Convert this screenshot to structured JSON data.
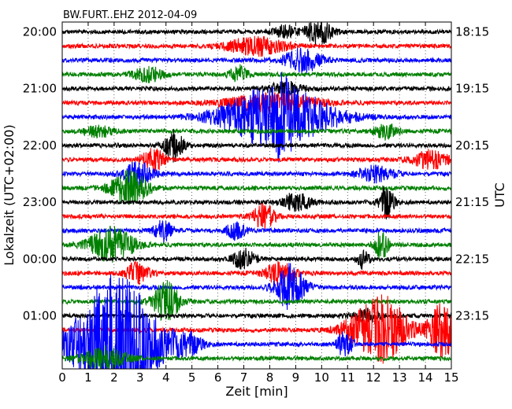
{
  "chart_data": {
    "type": "line",
    "title": "BW.FURT..EHZ 2012-04-09",
    "xlabel": "Zeit  [min]",
    "ylabel_left": "Lokalzeit (UTC+02:00)",
    "ylabel_right": "UTC",
    "xlim": [
      0,
      15
    ],
    "x_ticks": [
      "0",
      "1",
      "2",
      "3",
      "4",
      "5",
      "6",
      "7",
      "8",
      "9",
      "10",
      "11",
      "12",
      "13",
      "14",
      "15"
    ],
    "left_ticks": [
      "20:00",
      "21:00",
      "22:00",
      "23:00",
      "00:00",
      "01:00"
    ],
    "right_ticks": [
      "18:15",
      "19:15",
      "20:15",
      "21:15",
      "22:15",
      "23:15"
    ],
    "grid": true,
    "trace_minutes": 15,
    "trace_colors": [
      "#000000",
      "#ff0000",
      "#0000ff",
      "#008000"
    ],
    "traces": [
      {
        "start": "20:00",
        "bursts": [
          {
            "t": 9.9,
            "amp": 1.0,
            "w": 0.35
          },
          {
            "t": 8.6,
            "amp": 0.5,
            "w": 0.3
          }
        ]
      },
      {
        "start": "20:15",
        "bursts": [
          {
            "t": 7.5,
            "amp": 0.7,
            "w": 0.8
          }
        ]
      },
      {
        "start": "20:30",
        "bursts": [
          {
            "t": 9.3,
            "amp": 0.9,
            "w": 0.5
          }
        ]
      },
      {
        "start": "20:45",
        "bursts": [
          {
            "t": 3.3,
            "amp": 0.6,
            "w": 0.4
          },
          {
            "t": 6.8,
            "amp": 0.7,
            "w": 0.25
          }
        ]
      },
      {
        "start": "21:00",
        "bursts": [
          {
            "t": 8.6,
            "amp": 0.5,
            "w": 0.5
          }
        ]
      },
      {
        "start": "21:15",
        "bursts": [
          {
            "t": 8.1,
            "amp": 0.7,
            "w": 1.2
          }
        ]
      },
      {
        "start": "21:30",
        "bursts": [
          {
            "t": 8.3,
            "amp": 2.6,
            "w": 1.4
          },
          {
            "t": 8.5,
            "amp": 1.5,
            "w": 0.15
          }
        ]
      },
      {
        "start": "21:45",
        "bursts": [
          {
            "t": 12.5,
            "amp": 0.6,
            "w": 0.3
          },
          {
            "t": 1.4,
            "amp": 0.4,
            "w": 0.4
          }
        ]
      },
      {
        "start": "22:00",
        "bursts": [
          {
            "t": 4.3,
            "amp": 1.2,
            "w": 0.25
          }
        ]
      },
      {
        "start": "22:15",
        "bursts": [
          {
            "t": 3.5,
            "amp": 0.9,
            "w": 0.3
          },
          {
            "t": 14.2,
            "amp": 0.7,
            "w": 0.5
          }
        ]
      },
      {
        "start": "22:30",
        "bursts": [
          {
            "t": 2.9,
            "amp": 1.0,
            "w": 0.4
          },
          {
            "t": 12.1,
            "amp": 0.6,
            "w": 0.5
          }
        ]
      },
      {
        "start": "22:45",
        "bursts": [
          {
            "t": 2.6,
            "amp": 1.3,
            "w": 0.5
          }
        ]
      },
      {
        "start": "23:00",
        "bursts": [
          {
            "t": 12.5,
            "amp": 1.3,
            "w": 0.2
          },
          {
            "t": 9.0,
            "amp": 0.7,
            "w": 0.4
          }
        ]
      },
      {
        "start": "23:15",
        "bursts": [
          {
            "t": 7.8,
            "amp": 1.0,
            "w": 0.3
          }
        ]
      },
      {
        "start": "23:30",
        "bursts": [
          {
            "t": 3.9,
            "amp": 0.8,
            "w": 0.25
          },
          {
            "t": 6.7,
            "amp": 0.7,
            "w": 0.25
          }
        ]
      },
      {
        "start": "23:45",
        "bursts": [
          {
            "t": 1.9,
            "amp": 1.4,
            "w": 0.6
          },
          {
            "t": 12.3,
            "amp": 1.1,
            "w": 0.2
          }
        ]
      },
      {
        "start": "00:00",
        "bursts": [
          {
            "t": 7.0,
            "amp": 0.8,
            "w": 0.3
          },
          {
            "t": 11.6,
            "amp": 0.8,
            "w": 0.15
          }
        ]
      },
      {
        "start": "00:15",
        "bursts": [
          {
            "t": 2.9,
            "amp": 0.9,
            "w": 0.3
          },
          {
            "t": 8.4,
            "amp": 0.9,
            "w": 0.4
          }
        ]
      },
      {
        "start": "00:30",
        "bursts": [
          {
            "t": 8.8,
            "amp": 1.8,
            "w": 0.4
          }
        ]
      },
      {
        "start": "00:45",
        "bursts": [
          {
            "t": 4.0,
            "amp": 1.6,
            "w": 0.35
          }
        ]
      },
      {
        "start": "01:00",
        "bursts": [
          {
            "t": 11.7,
            "amp": 0.5,
            "w": 0.4
          }
        ]
      },
      {
        "start": "01:15",
        "bursts": [
          {
            "t": 12.5,
            "amp": 2.4,
            "w": 0.6
          },
          {
            "t": 14.7,
            "amp": 2.2,
            "w": 0.4
          },
          {
            "t": 11.5,
            "amp": 1.0,
            "w": 0.6
          }
        ]
      },
      {
        "start": "01:30",
        "bursts": [
          {
            "t": 2.1,
            "amp": 5.5,
            "w": 1.1
          },
          {
            "t": 10.9,
            "amp": 1.2,
            "w": 0.2
          },
          {
            "t": 4.8,
            "amp": 0.8,
            "w": 0.4
          }
        ]
      },
      {
        "start": "01:45",
        "bursts": [
          {
            "t": 1.6,
            "amp": 0.9,
            "w": 0.6
          }
        ]
      }
    ]
  }
}
